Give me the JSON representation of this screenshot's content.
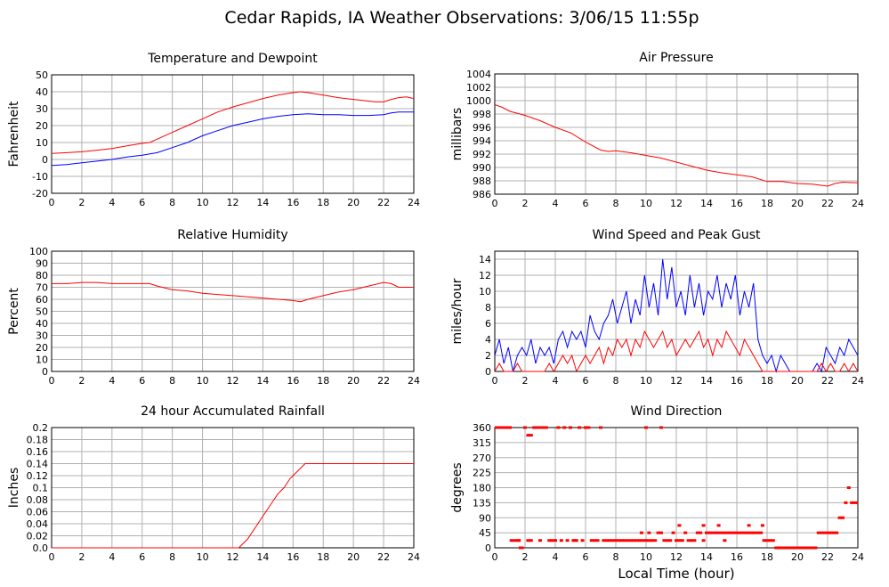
{
  "page": {
    "title": "Cedar Rapids, IA Weather Observations: 3/06/15 11:55p",
    "bottom_xlabel": "Local Time (hour)"
  },
  "colors": {
    "red": "#ff0000",
    "blue": "#0000ff",
    "grid": "#b0b0b0",
    "axis": "#000000"
  },
  "chart_data": [
    {
      "id": "temp",
      "type": "line",
      "title": "Temperature and Dewpoint",
      "xlabel": "",
      "ylabel": "Fahrenheit",
      "xlim": [
        0,
        24
      ],
      "ylim": [
        -20,
        50
      ],
      "xticks": [
        0,
        2,
        4,
        6,
        8,
        10,
        12,
        14,
        16,
        18,
        20,
        22,
        24
      ],
      "yticks": [
        -20,
        -10,
        0,
        10,
        20,
        30,
        40,
        50
      ],
      "grid": true,
      "series": [
        {
          "color": "#ff0000",
          "x": [
            0,
            1,
            2,
            3,
            4,
            5,
            6,
            6.5,
            7,
            8,
            9,
            10,
            11,
            12,
            13,
            14,
            15,
            16,
            16.5,
            17,
            18,
            19,
            20,
            21,
            21.5,
            22,
            22.5,
            23,
            23.5,
            24
          ],
          "y": [
            3.5,
            4,
            4.5,
            5.5,
            6.5,
            8,
            9.5,
            10,
            12,
            16,
            20,
            24,
            28,
            31,
            33.5,
            36,
            38,
            39.5,
            40,
            39.5,
            38,
            36.5,
            35.5,
            34.5,
            34,
            34,
            35.5,
            36.5,
            37,
            36
          ]
        },
        {
          "color": "#0000ff",
          "x": [
            0,
            1,
            2,
            3,
            4,
            5,
            6,
            7,
            8,
            9,
            10,
            11,
            12,
            13,
            14,
            15,
            16,
            17,
            18,
            19,
            20,
            21,
            22,
            22.5,
            23,
            24
          ],
          "y": [
            -3.5,
            -3,
            -2,
            -1,
            0,
            1.5,
            2.5,
            4,
            7,
            10,
            14,
            17,
            20,
            22,
            24,
            25.5,
            26.5,
            27,
            26.5,
            26.5,
            26,
            26,
            26.5,
            27.5,
            28,
            28
          ]
        }
      ]
    },
    {
      "id": "pressure",
      "type": "line",
      "title": "Air Pressure",
      "xlabel": "",
      "ylabel": "millibars",
      "xlim": [
        0,
        24
      ],
      "ylim": [
        986,
        1004
      ],
      "xticks": [
        0,
        2,
        4,
        6,
        8,
        10,
        12,
        14,
        16,
        18,
        20,
        22,
        24
      ],
      "yticks": [
        986,
        988,
        990,
        992,
        994,
        996,
        998,
        1000,
        1002,
        1004
      ],
      "grid": true,
      "series": [
        {
          "color": "#ff0000",
          "x": [
            0,
            0.5,
            1,
            2,
            3,
            4,
            5,
            6,
            7,
            7.5,
            8,
            9,
            10,
            11,
            12,
            13,
            14,
            15,
            16,
            17,
            18,
            19,
            20,
            21,
            22,
            22.5,
            23,
            24
          ],
          "y": [
            999.4,
            999,
            998.4,
            997.8,
            997,
            996,
            995.2,
            993.8,
            992.6,
            992.4,
            992.5,
            992.2,
            991.8,
            991.4,
            990.8,
            990.2,
            989.6,
            989.2,
            988.9,
            988.6,
            987.9,
            987.9,
            987.6,
            987.5,
            987.2,
            987.6,
            987.8,
            987.7
          ]
        }
      ]
    },
    {
      "id": "humidity",
      "type": "line",
      "title": "Relative Humidity",
      "xlabel": "",
      "ylabel": "Percent",
      "xlim": [
        0,
        24
      ],
      "ylim": [
        0,
        100
      ],
      "xticks": [
        0,
        2,
        4,
        6,
        8,
        10,
        12,
        14,
        16,
        18,
        20,
        22,
        24
      ],
      "yticks": [
        0,
        10,
        20,
        30,
        40,
        50,
        60,
        70,
        80,
        90,
        100
      ],
      "grid": true,
      "series": [
        {
          "color": "#ff0000",
          "x": [
            0,
            1,
            2,
            3,
            4,
            5,
            6,
            6.5,
            7,
            8,
            9,
            10,
            11,
            12,
            13,
            14,
            15,
            16,
            16.5,
            17,
            18,
            19,
            20,
            21,
            22,
            22.5,
            23,
            24
          ],
          "y": [
            73,
            73,
            74,
            74,
            73,
            73,
            73,
            73,
            71,
            68,
            67,
            65,
            64,
            63,
            62,
            61,
            60,
            59,
            58,
            60,
            63,
            66,
            68,
            71,
            74,
            73,
            70,
            70
          ]
        }
      ]
    },
    {
      "id": "wind",
      "type": "line",
      "title": "Wind Speed and Peak Gust",
      "xlabel": "",
      "ylabel": "miles/hour",
      "xlim": [
        0,
        24
      ],
      "ylim": [
        0,
        15
      ],
      "xticks": [
        0,
        2,
        4,
        6,
        8,
        10,
        12,
        14,
        16,
        18,
        20,
        22,
        24
      ],
      "yticks": [
        0,
        2,
        4,
        6,
        8,
        10,
        12,
        14
      ],
      "grid": true,
      "series": [
        {
          "color": "#0000ff",
          "x": [
            0,
            0.3,
            0.6,
            0.9,
            1.2,
            1.5,
            1.8,
            2.1,
            2.4,
            2.7,
            3,
            3.3,
            3.6,
            3.9,
            4.2,
            4.5,
            4.8,
            5.1,
            5.4,
            5.7,
            6,
            6.3,
            6.6,
            6.9,
            7.2,
            7.5,
            7.8,
            8.1,
            8.4,
            8.7,
            9,
            9.3,
            9.6,
            9.9,
            10.2,
            10.5,
            10.8,
            11.1,
            11.4,
            11.7,
            12,
            12.3,
            12.6,
            12.9,
            13.2,
            13.5,
            13.8,
            14.1,
            14.4,
            14.7,
            15,
            15.3,
            15.6,
            15.9,
            16.2,
            16.5,
            16.8,
            17.1,
            17.4,
            17.7,
            18,
            18.3,
            18.6,
            18.9,
            19.2,
            19.5,
            19.8,
            20.1,
            20.4,
            20.7,
            21,
            21.3,
            21.6,
            21.9,
            22.2,
            22.5,
            22.8,
            23.1,
            23.4,
            23.7,
            24
          ],
          "y": [
            2,
            4,
            1,
            3,
            0,
            2,
            3,
            2,
            4,
            1,
            3,
            2,
            3,
            1,
            4,
            5,
            3,
            5,
            4,
            5,
            3,
            7,
            5,
            4,
            6,
            7,
            9,
            6,
            8,
            10,
            6,
            9,
            7,
            12,
            8,
            11,
            7,
            14,
            9,
            13,
            8,
            10,
            7,
            12,
            8,
            11,
            7,
            10,
            9,
            12,
            8,
            11,
            9,
            12,
            7,
            10,
            8,
            11,
            4,
            2,
            1,
            2,
            0,
            2,
            1,
            0,
            0,
            0,
            0,
            0,
            0,
            1,
            0,
            3,
            2,
            1,
            3,
            2,
            4,
            3,
            2
          ]
        },
        {
          "color": "#ff0000",
          "x": [
            0,
            0.3,
            0.6,
            0.9,
            1.2,
            1.5,
            1.8,
            2.1,
            2.4,
            2.7,
            3,
            3.3,
            3.6,
            3.9,
            4.2,
            4.5,
            4.8,
            5.1,
            5.4,
            5.7,
            6,
            6.3,
            6.6,
            6.9,
            7.2,
            7.5,
            7.8,
            8.1,
            8.4,
            8.7,
            9,
            9.3,
            9.6,
            9.9,
            10.2,
            10.5,
            10.8,
            11.1,
            11.4,
            11.7,
            12,
            12.3,
            12.6,
            12.9,
            13.2,
            13.5,
            13.8,
            14.1,
            14.4,
            14.7,
            15,
            15.3,
            15.6,
            15.9,
            16.2,
            16.5,
            16.8,
            17.1,
            17.4,
            17.7,
            18,
            18.3,
            18.6,
            18.9,
            19.2,
            19.5,
            19.8,
            20.1,
            20.4,
            20.7,
            21,
            21.3,
            21.6,
            21.9,
            22.2,
            22.5,
            22.8,
            23.1,
            23.4,
            23.7,
            24
          ],
          "y": [
            0,
            1,
            0,
            0,
            0,
            1,
            0,
            0,
            0,
            0,
            0,
            0,
            1,
            0,
            1,
            2,
            1,
            2,
            0,
            1,
            2,
            1,
            2,
            3,
            1,
            3,
            2,
            4,
            3,
            4,
            2,
            4,
            3,
            5,
            4,
            3,
            4,
            5,
            3,
            4,
            2,
            3,
            4,
            3,
            4,
            5,
            3,
            4,
            2,
            4,
            3,
            5,
            4,
            3,
            2,
            4,
            3,
            2,
            1,
            0,
            0,
            0,
            0,
            0,
            0,
            0,
            0,
            0,
            0,
            0,
            0,
            0,
            1,
            0,
            1,
            0,
            0,
            1,
            0,
            1,
            0
          ]
        }
      ]
    },
    {
      "id": "rain",
      "type": "line",
      "title": "24 hour Accumulated Rainfall",
      "xlabel": "",
      "ylabel": "Inches",
      "xlim": [
        0,
        24
      ],
      "ylim": [
        0,
        0.2
      ],
      "xticks": [
        0,
        2,
        4,
        6,
        8,
        10,
        12,
        14,
        16,
        18,
        20,
        22,
        24
      ],
      "yticks": [
        0.0,
        0.02,
        0.04,
        0.06,
        0.08,
        0.1,
        0.12,
        0.14,
        0.16,
        0.18,
        0.2
      ],
      "ytick_labels": [
        "0.0",
        "0.02",
        "0.04",
        "0.06",
        "0.08",
        "0.1",
        "0.12",
        "0.14",
        "0.16",
        "0.18",
        "0.2"
      ],
      "grid": true,
      "series": [
        {
          "color": "#ff0000",
          "x": [
            0,
            12.4,
            12.6,
            13,
            13.4,
            13.8,
            14.2,
            14.6,
            15,
            15.4,
            15.8,
            16.2,
            16.6,
            16.8,
            24
          ],
          "y": [
            0,
            0,
            0.005,
            0.015,
            0.03,
            0.045,
            0.06,
            0.075,
            0.09,
            0.1,
            0.115,
            0.125,
            0.135,
            0.14,
            0.14
          ]
        }
      ]
    },
    {
      "id": "direction",
      "type": "scatter",
      "title": "Wind Direction",
      "xlabel": "",
      "ylabel": "degrees",
      "xlim": [
        0,
        24
      ],
      "ylim": [
        0,
        360
      ],
      "xticks": [
        0,
        2,
        4,
        6,
        8,
        10,
        12,
        14,
        16,
        18,
        20,
        22,
        24
      ],
      "yticks": [
        0,
        45,
        90,
        135,
        180,
        225,
        270,
        315,
        360
      ],
      "grid": true,
      "series": [
        {
          "color": "#ff0000",
          "x": [
            0,
            0.2,
            0.4,
            0.6,
            0.8,
            1.0,
            1.1,
            1.3,
            1.5,
            1.7,
            1.8,
            2.0,
            2.2,
            2.4,
            2.6,
            2.8,
            3.0,
            3.2,
            3.4,
            3.6,
            3.8,
            4.0,
            4.2,
            4.4,
            4.6,
            4.8,
            5.0,
            5.2,
            5.4,
            5.6,
            5.8,
            6.0,
            6.2,
            6.4,
            6.6,
            6.8,
            7.0,
            7.2,
            7.4,
            7.6,
            7.8,
            8.0,
            8.2,
            8.4,
            8.6,
            8.8,
            9.0,
            9.2,
            9.4,
            9.6,
            9.8,
            10.0,
            10.2,
            10.4,
            10.6,
            10.8,
            11.0,
            11.2,
            11.4,
            11.6,
            11.8,
            12.0,
            12.2,
            12.4,
            12.6,
            12.8,
            13.0,
            13.2,
            13.4,
            13.6,
            13.8,
            14.0,
            14.2,
            14.4,
            14.6,
            14.8,
            15.0,
            15.2,
            15.4,
            15.6,
            15.8,
            16.0,
            16.2,
            16.4,
            16.6,
            16.8,
            17.0,
            17.2,
            17.4,
            17.6,
            17.8,
            18.0,
            18.2,
            18.4,
            18.6,
            18.8,
            19.0,
            19.2,
            19.4,
            19.6,
            19.8,
            20.0,
            20.2,
            20.4,
            20.6,
            20.8,
            21.0,
            21.2,
            21.4,
            21.6,
            21.8,
            22.0,
            22.2,
            22.4,
            22.6,
            22.8,
            23.0,
            23.2,
            23.4,
            23.6,
            23.8,
            24.0,
            10.0,
            11.0,
            3.0,
            2.2,
            2.4,
            1.6,
            12.2,
            13.8,
            14.8,
            16.8,
            15.2,
            5.3,
            10.2,
            9.7,
            17.7
          ],
          "y": [
            360,
            360,
            360,
            360,
            360,
            360,
            22,
            22,
            22,
            0,
            0,
            360,
            337,
            337,
            360,
            360,
            360,
            360,
            360,
            22,
            22,
            22,
            360,
            22,
            360,
            22,
            360,
            22,
            22,
            360,
            22,
            360,
            360,
            22,
            22,
            22,
            360,
            22,
            22,
            22,
            22,
            22,
            22,
            22,
            22,
            22,
            22,
            22,
            22,
            22,
            22,
            22,
            22,
            22,
            22,
            45,
            45,
            22,
            22,
            22,
            45,
            22,
            22,
            22,
            45,
            22,
            22,
            22,
            45,
            45,
            22,
            45,
            45,
            45,
            45,
            45,
            45,
            45,
            45,
            45,
            45,
            45,
            45,
            45,
            45,
            45,
            45,
            45,
            45,
            45,
            22,
            22,
            22,
            22,
            0,
            0,
            0,
            0,
            0,
            0,
            0,
            0,
            0,
            0,
            0,
            0,
            0,
            0,
            45,
            45,
            45,
            45,
            45,
            45,
            45,
            90,
            90,
            135,
            180,
            135,
            135,
            135,
            360,
            360,
            22,
            22,
            22,
            22,
            67,
            67,
            67,
            67,
            22,
            22,
            45,
            45,
            67
          ]
        }
      ]
    }
  ]
}
